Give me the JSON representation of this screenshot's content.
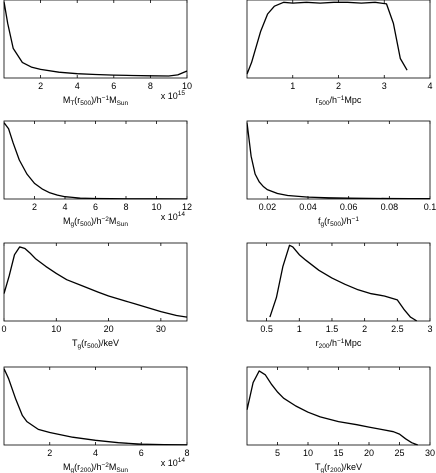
{
  "chart_data": [
    {
      "type": "line",
      "xlim": [
        0,
        10
      ],
      "ylim": [
        0,
        1
      ],
      "xticks": [
        2,
        4,
        6,
        8,
        10
      ],
      "tick_labels": [
        "2",
        "4",
        "6",
        "8",
        "10"
      ],
      "xlabel_parts": [
        {
          "t": "M"
        },
        {
          "t": "T",
          "s": "sub"
        },
        {
          "t": "(r"
        },
        {
          "t": "500",
          "s": "sub"
        },
        {
          "t": ")/h"
        },
        {
          "t": "−1",
          "s": "sup"
        },
        {
          "t": "M"
        },
        {
          "t": "Sun",
          "s": "sub"
        }
      ],
      "multiplier": {
        "base": "x 10",
        "exp": "15"
      },
      "x": [
        0,
        0.2,
        0.5,
        1,
        1.5,
        2,
        3,
        4,
        5,
        6,
        7,
        8,
        9,
        9.5,
        10
      ],
      "y": [
        0.98,
        0.7,
        0.38,
        0.2,
        0.14,
        0.11,
        0.075,
        0.055,
        0.045,
        0.037,
        0.032,
        0.028,
        0.025,
        0.04,
        0.09
      ]
    },
    {
      "type": "line",
      "xlim": [
        0,
        4
      ],
      "ylim": [
        0,
        1
      ],
      "xticks": [
        1,
        2,
        3,
        4
      ],
      "tick_labels": [
        "1",
        "2",
        "3",
        "4"
      ],
      "xlabel_parts": [
        {
          "t": "r"
        },
        {
          "t": "500",
          "s": "sub"
        },
        {
          "t": "/h"
        },
        {
          "t": "−1",
          "s": "sup"
        },
        {
          "t": "Mpc"
        }
      ],
      "x": [
        0,
        0.1,
        0.3,
        0.45,
        0.6,
        0.8,
        1.0,
        1.3,
        1.6,
        1.9,
        2.2,
        2.5,
        2.8,
        3.05,
        3.2,
        3.35,
        3.5
      ],
      "y": [
        0.05,
        0.2,
        0.6,
        0.82,
        0.92,
        0.97,
        0.96,
        0.97,
        0.96,
        0.97,
        0.97,
        0.96,
        0.97,
        0.95,
        0.7,
        0.25,
        0.1
      ]
    },
    {
      "type": "line",
      "xlim": [
        0,
        12
      ],
      "ylim": [
        0,
        1
      ],
      "xticks": [
        2,
        4,
        6,
        8,
        10,
        12
      ],
      "tick_labels": [
        "2",
        "4",
        "6",
        "8",
        "10",
        "12"
      ],
      "xlabel_parts": [
        {
          "t": "M"
        },
        {
          "t": "g",
          "s": "sub"
        },
        {
          "t": "(r"
        },
        {
          "t": "500",
          "s": "sub"
        },
        {
          "t": ")/h"
        },
        {
          "t": "−2",
          "s": "sup"
        },
        {
          "t": "M"
        },
        {
          "t": "Sun",
          "s": "sub"
        }
      ],
      "multiplier": {
        "base": "x 10",
        "exp": "14"
      },
      "x": [
        0,
        0.3,
        0.6,
        1,
        1.5,
        2,
        2.5,
        3,
        3.5,
        4,
        4.5,
        5,
        6,
        7,
        8,
        9,
        10,
        12
      ],
      "y": [
        0.98,
        0.9,
        0.72,
        0.5,
        0.32,
        0.2,
        0.13,
        0.08,
        0.05,
        0.03,
        0.02,
        0.012,
        0.006,
        0.004,
        0.003,
        0.002,
        0.002,
        0.001
      ]
    },
    {
      "type": "line",
      "xlim": [
        0.01,
        0.1
      ],
      "ylim": [
        0,
        1
      ],
      "xticks": [
        0.02,
        0.04,
        0.06,
        0.08,
        0.1
      ],
      "tick_labels": [
        "0.02",
        "0.04",
        "0.06",
        "0.08",
        "0.1"
      ],
      "xlabel_parts": [
        {
          "t": "f"
        },
        {
          "t": "g",
          "s": "sub"
        },
        {
          "t": "(r"
        },
        {
          "t": "500",
          "s": "sub"
        },
        {
          "t": ")/h"
        },
        {
          "t": "−1",
          "s": "sup"
        }
      ],
      "x": [
        0.01,
        0.012,
        0.014,
        0.016,
        0.018,
        0.02,
        0.025,
        0.03,
        0.04,
        0.05,
        0.06,
        0.07,
        0.08,
        0.09,
        0.1
      ],
      "y": [
        0.98,
        0.55,
        0.32,
        0.22,
        0.16,
        0.12,
        0.07,
        0.045,
        0.025,
        0.015,
        0.01,
        0.008,
        0.006,
        0.005,
        0.004
      ]
    },
    {
      "type": "line",
      "xlim": [
        0,
        35
      ],
      "ylim": [
        0,
        1
      ],
      "xticks": [
        0,
        10,
        20,
        30
      ],
      "tick_labels": [
        "0",
        "10",
        "20",
        "30"
      ],
      "xlabel_parts": [
        {
          "t": "T"
        },
        {
          "t": "g",
          "s": "sub"
        },
        {
          "t": "(r"
        },
        {
          "t": "500",
          "s": "sub"
        },
        {
          "t": ")/keV"
        }
      ],
      "x": [
        0,
        1,
        2,
        3,
        4,
        5,
        6,
        8,
        10,
        12,
        15,
        18,
        20,
        25,
        30,
        33,
        35
      ],
      "y": [
        0.35,
        0.58,
        0.85,
        0.95,
        0.93,
        0.87,
        0.8,
        0.7,
        0.61,
        0.53,
        0.45,
        0.37,
        0.32,
        0.22,
        0.12,
        0.07,
        0.05
      ]
    },
    {
      "type": "line",
      "xlim": [
        0.2,
        3
      ],
      "ylim": [
        0,
        1
      ],
      "xticks": [
        0.5,
        1,
        1.5,
        2,
        2.5,
        3
      ],
      "tick_labels": [
        "0.5",
        "1",
        "1.5",
        "2",
        "2.5",
        "3"
      ],
      "xlabel_parts": [
        {
          "t": "r"
        },
        {
          "t": "200",
          "s": "sub"
        },
        {
          "t": "/h"
        },
        {
          "t": "−1",
          "s": "sup"
        },
        {
          "t": "Mpc"
        }
      ],
      "x": [
        0.55,
        0.65,
        0.75,
        0.85,
        0.9,
        1.0,
        1.1,
        1.3,
        1.5,
        1.7,
        1.9,
        2.1,
        2.3,
        2.5,
        2.6,
        2.7,
        2.8
      ],
      "y": [
        0.05,
        0.3,
        0.7,
        0.97,
        0.95,
        0.85,
        0.78,
        0.65,
        0.55,
        0.47,
        0.4,
        0.35,
        0.32,
        0.27,
        0.15,
        0.05,
        0.0
      ]
    },
    {
      "type": "line",
      "xlim": [
        0,
        8
      ],
      "ylim": [
        0,
        1
      ],
      "xticks": [
        2,
        4,
        6,
        8
      ],
      "tick_labels": [
        "2",
        "4",
        "6",
        "8"
      ],
      "xlabel_parts": [
        {
          "t": "M"
        },
        {
          "t": "g",
          "s": "sub"
        },
        {
          "t": "(r"
        },
        {
          "t": "200",
          "s": "sub"
        },
        {
          "t": ")/h"
        },
        {
          "t": "−2",
          "s": "sup"
        },
        {
          "t": "M"
        },
        {
          "t": "Sun",
          "s": "sub"
        }
      ],
      "multiplier": {
        "base": "x 10",
        "exp": "14"
      },
      "x": [
        0,
        0.2,
        0.5,
        0.8,
        1,
        1.5,
        2,
        2.5,
        3,
        4,
        5,
        6,
        7,
        8
      ],
      "y": [
        0.98,
        0.85,
        0.6,
        0.38,
        0.3,
        0.2,
        0.16,
        0.13,
        0.1,
        0.06,
        0.03,
        0.012,
        0.005,
        0.002
      ]
    },
    {
      "type": "line",
      "xlim": [
        0,
        30
      ],
      "ylim": [
        0,
        1
      ],
      "xticks": [
        5,
        10,
        15,
        20,
        25,
        30
      ],
      "tick_labels": [
        "5",
        "10",
        "15",
        "20",
        "25",
        "30"
      ],
      "xlabel_parts": [
        {
          "t": "T"
        },
        {
          "t": "g",
          "s": "sub"
        },
        {
          "t": "(r"
        },
        {
          "t": "200",
          "s": "sub"
        },
        {
          "t": ")/keV"
        }
      ],
      "x": [
        0,
        1,
        2,
        3,
        4,
        5,
        6,
        8,
        10,
        12,
        15,
        18,
        20,
        22,
        24,
        25,
        26,
        27,
        28
      ],
      "y": [
        0.45,
        0.8,
        0.95,
        0.9,
        0.78,
        0.68,
        0.6,
        0.5,
        0.42,
        0.36,
        0.3,
        0.26,
        0.23,
        0.2,
        0.17,
        0.14,
        0.08,
        0.03,
        0.0
      ]
    }
  ]
}
